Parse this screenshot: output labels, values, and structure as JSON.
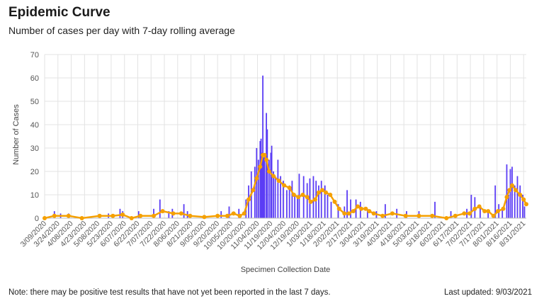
{
  "header": {
    "title": "Epidemic Curve",
    "subtitle": "Number of cases per day with 7-day rolling average"
  },
  "footer": {
    "note": "Note: there may be positive test results that have not yet been reported in the last 7 days.",
    "updated": "Last updated: 9/03/2021"
  },
  "colors": {
    "bars": "#5b3df5",
    "average": "#f5a000",
    "grid": "#e3e3e3",
    "axis_text": "#555555"
  },
  "chart_data": {
    "type": "bar",
    "title": "Epidemic Curve",
    "subtitle": "Number of cases per day with 7-day rolling average",
    "xlabel": "Specimen Collection Date",
    "ylabel": "Number of Cases",
    "ylim": [
      0,
      70
    ],
    "yticks": [
      0,
      10,
      20,
      30,
      40,
      50,
      60,
      70
    ],
    "grid": true,
    "x_start": "2020-03-09",
    "x_end": "2021-09-03",
    "xtick_labels": [
      "3/09/2020",
      "3/24/2020",
      "4/08/2020",
      "4/23/2020",
      "5/08/2020",
      "5/23/2020",
      "6/07/2020",
      "6/22/2020",
      "7/07/2020",
      "7/22/2020",
      "8/06/2020",
      "8/21/2020",
      "9/05/2020",
      "9/20/2020",
      "10/05/2020",
      "10/20/2020",
      "11/04/2020",
      "11/19/2020",
      "12/04/2020",
      "12/19/2020",
      "1/03/2021",
      "1/18/2021",
      "2/02/2021",
      "2/17/2021",
      "3/04/2021",
      "3/19/2021",
      "4/03/2021",
      "4/18/2021",
      "5/03/2021",
      "5/18/2021",
      "6/02/2021",
      "6/17/2021",
      "7/02/2021",
      "7/17/2021",
      "8/01/2021",
      "8/16/2021",
      "8/31/2021"
    ],
    "series": [
      {
        "name": "Cases",
        "kind": "bar",
        "points": [
          [
            "2020-03-20",
            3
          ],
          [
            "2020-03-27",
            2
          ],
          [
            "2020-04-05",
            2
          ],
          [
            "2020-05-20",
            2
          ],
          [
            "2020-06-02",
            4
          ],
          [
            "2020-06-05",
            3
          ],
          [
            "2020-06-23",
            3
          ],
          [
            "2020-07-10",
            4
          ],
          [
            "2020-07-17",
            8
          ],
          [
            "2020-07-27",
            3
          ],
          [
            "2020-07-31",
            4
          ],
          [
            "2020-08-13",
            6
          ],
          [
            "2020-08-17",
            3
          ],
          [
            "2020-09-24",
            3
          ],
          [
            "2020-10-03",
            5
          ],
          [
            "2020-10-14",
            4
          ],
          [
            "2020-10-22",
            8
          ],
          [
            "2020-10-25",
            14
          ],
          [
            "2020-10-28",
            20
          ],
          [
            "2020-11-01",
            22
          ],
          [
            "2020-11-03",
            30
          ],
          [
            "2020-11-05",
            25
          ],
          [
            "2020-11-07",
            33
          ],
          [
            "2020-11-08",
            34
          ],
          [
            "2020-11-09",
            28
          ],
          [
            "2020-11-10",
            61
          ],
          [
            "2020-11-11",
            26
          ],
          [
            "2020-11-12",
            27
          ],
          [
            "2020-11-14",
            45
          ],
          [
            "2020-11-15",
            38
          ],
          [
            "2020-11-17",
            25
          ],
          [
            "2020-11-19",
            28
          ],
          [
            "2020-11-20",
            31
          ],
          [
            "2020-11-22",
            20
          ],
          [
            "2020-11-24",
            18
          ],
          [
            "2020-11-27",
            25
          ],
          [
            "2020-11-30",
            18
          ],
          [
            "2020-12-03",
            16
          ],
          [
            "2020-12-07",
            12
          ],
          [
            "2020-12-10",
            14
          ],
          [
            "2020-12-13",
            16
          ],
          [
            "2020-12-16",
            10
          ],
          [
            "2020-12-19",
            9
          ],
          [
            "2020-12-21",
            19
          ],
          [
            "2020-12-26",
            18
          ],
          [
            "2020-12-30",
            15
          ],
          [
            "2021-01-02",
            17
          ],
          [
            "2021-01-06",
            18
          ],
          [
            "2021-01-09",
            16
          ],
          [
            "2021-01-12",
            14
          ],
          [
            "2021-01-15",
            16
          ],
          [
            "2021-01-19",
            14
          ],
          [
            "2021-01-22",
            10
          ],
          [
            "2021-01-26",
            7
          ],
          [
            "2021-02-03",
            6
          ],
          [
            "2021-02-10",
            5
          ],
          [
            "2021-02-13",
            12
          ],
          [
            "2021-02-17",
            8
          ],
          [
            "2021-02-23",
            8
          ],
          [
            "2021-02-28",
            7
          ],
          [
            "2021-03-08",
            4
          ],
          [
            "2021-03-18",
            3
          ],
          [
            "2021-03-28",
            6
          ],
          [
            "2021-04-10",
            4
          ],
          [
            "2021-04-21",
            3
          ],
          [
            "2021-05-05",
            3
          ],
          [
            "2021-05-23",
            7
          ],
          [
            "2021-06-10",
            3
          ],
          [
            "2021-06-28",
            4
          ],
          [
            "2021-07-03",
            10
          ],
          [
            "2021-07-07",
            9
          ],
          [
            "2021-07-13",
            5
          ],
          [
            "2021-07-22",
            3
          ],
          [
            "2021-07-30",
            14
          ],
          [
            "2021-08-03",
            6
          ],
          [
            "2021-08-07",
            4
          ],
          [
            "2021-08-12",
            23
          ],
          [
            "2021-08-14",
            10
          ],
          [
            "2021-08-16",
            21
          ],
          [
            "2021-08-18",
            22
          ],
          [
            "2021-08-21",
            14
          ],
          [
            "2021-08-24",
            18
          ],
          [
            "2021-08-27",
            14
          ],
          [
            "2021-08-30",
            10
          ],
          [
            "2021-09-01",
            5
          ]
        ]
      },
      {
        "name": "7-day rolling average",
        "kind": "line",
        "points": [
          [
            "2020-03-09",
            0
          ],
          [
            "2020-03-20",
            1
          ],
          [
            "2020-04-05",
            1
          ],
          [
            "2020-04-20",
            0
          ],
          [
            "2020-05-10",
            1
          ],
          [
            "2020-05-25",
            1
          ],
          [
            "2020-06-05",
            1.5
          ],
          [
            "2020-06-15",
            0
          ],
          [
            "2020-06-25",
            1
          ],
          [
            "2020-07-10",
            1
          ],
          [
            "2020-07-20",
            3
          ],
          [
            "2020-08-01",
            2
          ],
          [
            "2020-08-10",
            2
          ],
          [
            "2020-08-20",
            1
          ],
          [
            "2020-09-05",
            0.5
          ],
          [
            "2020-09-20",
            1
          ],
          [
            "2020-10-01",
            1
          ],
          [
            "2020-10-08",
            2
          ],
          [
            "2020-10-15",
            1
          ],
          [
            "2020-10-20",
            2
          ],
          [
            "2020-10-25",
            8
          ],
          [
            "2020-10-30",
            12
          ],
          [
            "2020-11-03",
            17
          ],
          [
            "2020-11-07",
            22
          ],
          [
            "2020-11-10",
            27
          ],
          [
            "2020-11-12",
            27
          ],
          [
            "2020-11-14",
            25
          ],
          [
            "2020-11-17",
            20
          ],
          [
            "2020-11-22",
            18
          ],
          [
            "2020-11-28",
            16
          ],
          [
            "2020-12-04",
            14
          ],
          [
            "2020-12-10",
            13
          ],
          [
            "2020-12-15",
            10
          ],
          [
            "2020-12-20",
            9
          ],
          [
            "2020-12-25",
            10
          ],
          [
            "2020-12-30",
            9
          ],
          [
            "2021-01-03",
            7
          ],
          [
            "2021-01-08",
            8
          ],
          [
            "2021-01-12",
            11
          ],
          [
            "2021-01-16",
            12
          ],
          [
            "2021-01-20",
            11
          ],
          [
            "2021-01-25",
            10
          ],
          [
            "2021-01-30",
            7
          ],
          [
            "2021-02-04",
            4
          ],
          [
            "2021-02-10",
            2
          ],
          [
            "2021-02-15",
            2
          ],
          [
            "2021-02-20",
            3
          ],
          [
            "2021-02-25",
            5
          ],
          [
            "2021-03-01",
            4
          ],
          [
            "2021-03-06",
            4
          ],
          [
            "2021-03-10",
            3
          ],
          [
            "2021-03-15",
            2
          ],
          [
            "2021-03-25",
            1
          ],
          [
            "2021-04-05",
            2
          ],
          [
            "2021-04-20",
            1
          ],
          [
            "2021-05-05",
            1
          ],
          [
            "2021-05-20",
            1
          ],
          [
            "2021-06-05",
            0
          ],
          [
            "2021-06-15",
            1
          ],
          [
            "2021-06-25",
            2
          ],
          [
            "2021-07-01",
            2
          ],
          [
            "2021-07-07",
            4
          ],
          [
            "2021-07-12",
            5
          ],
          [
            "2021-07-18",
            3
          ],
          [
            "2021-07-22",
            3
          ],
          [
            "2021-07-28",
            1
          ],
          [
            "2021-08-02",
            3
          ],
          [
            "2021-08-08",
            4
          ],
          [
            "2021-08-12",
            9
          ],
          [
            "2021-08-15",
            12
          ],
          [
            "2021-08-18",
            14
          ],
          [
            "2021-08-22",
            12
          ],
          [
            "2021-08-27",
            10
          ],
          [
            "2021-08-31",
            8
          ],
          [
            "2021-09-03",
            6
          ]
        ]
      }
    ]
  }
}
